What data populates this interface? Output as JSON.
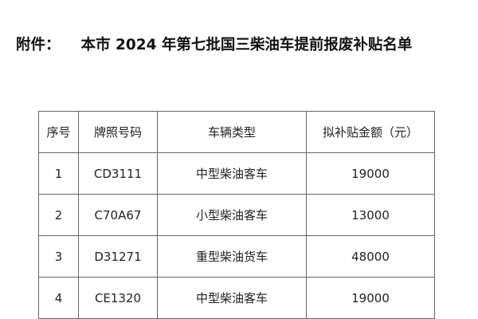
{
  "title": {
    "prefix": "附件：",
    "text": "本市 2024 年第七批国三柴油车提前报废补贴名单"
  },
  "table": {
    "headers": [
      "序号",
      "牌照号码",
      "车辆类型",
      "拟补贴金额（元）"
    ],
    "rows": [
      [
        "1",
        "CD3111",
        "中型柴油客车",
        "19000"
      ],
      [
        "2",
        "C70A67",
        "小型柴油客车",
        "13000"
      ],
      [
        "3",
        "D31271",
        "重型柴油货车",
        "48000"
      ],
      [
        "4",
        "CE1320",
        "中型柴油客车",
        "19000"
      ]
    ]
  }
}
